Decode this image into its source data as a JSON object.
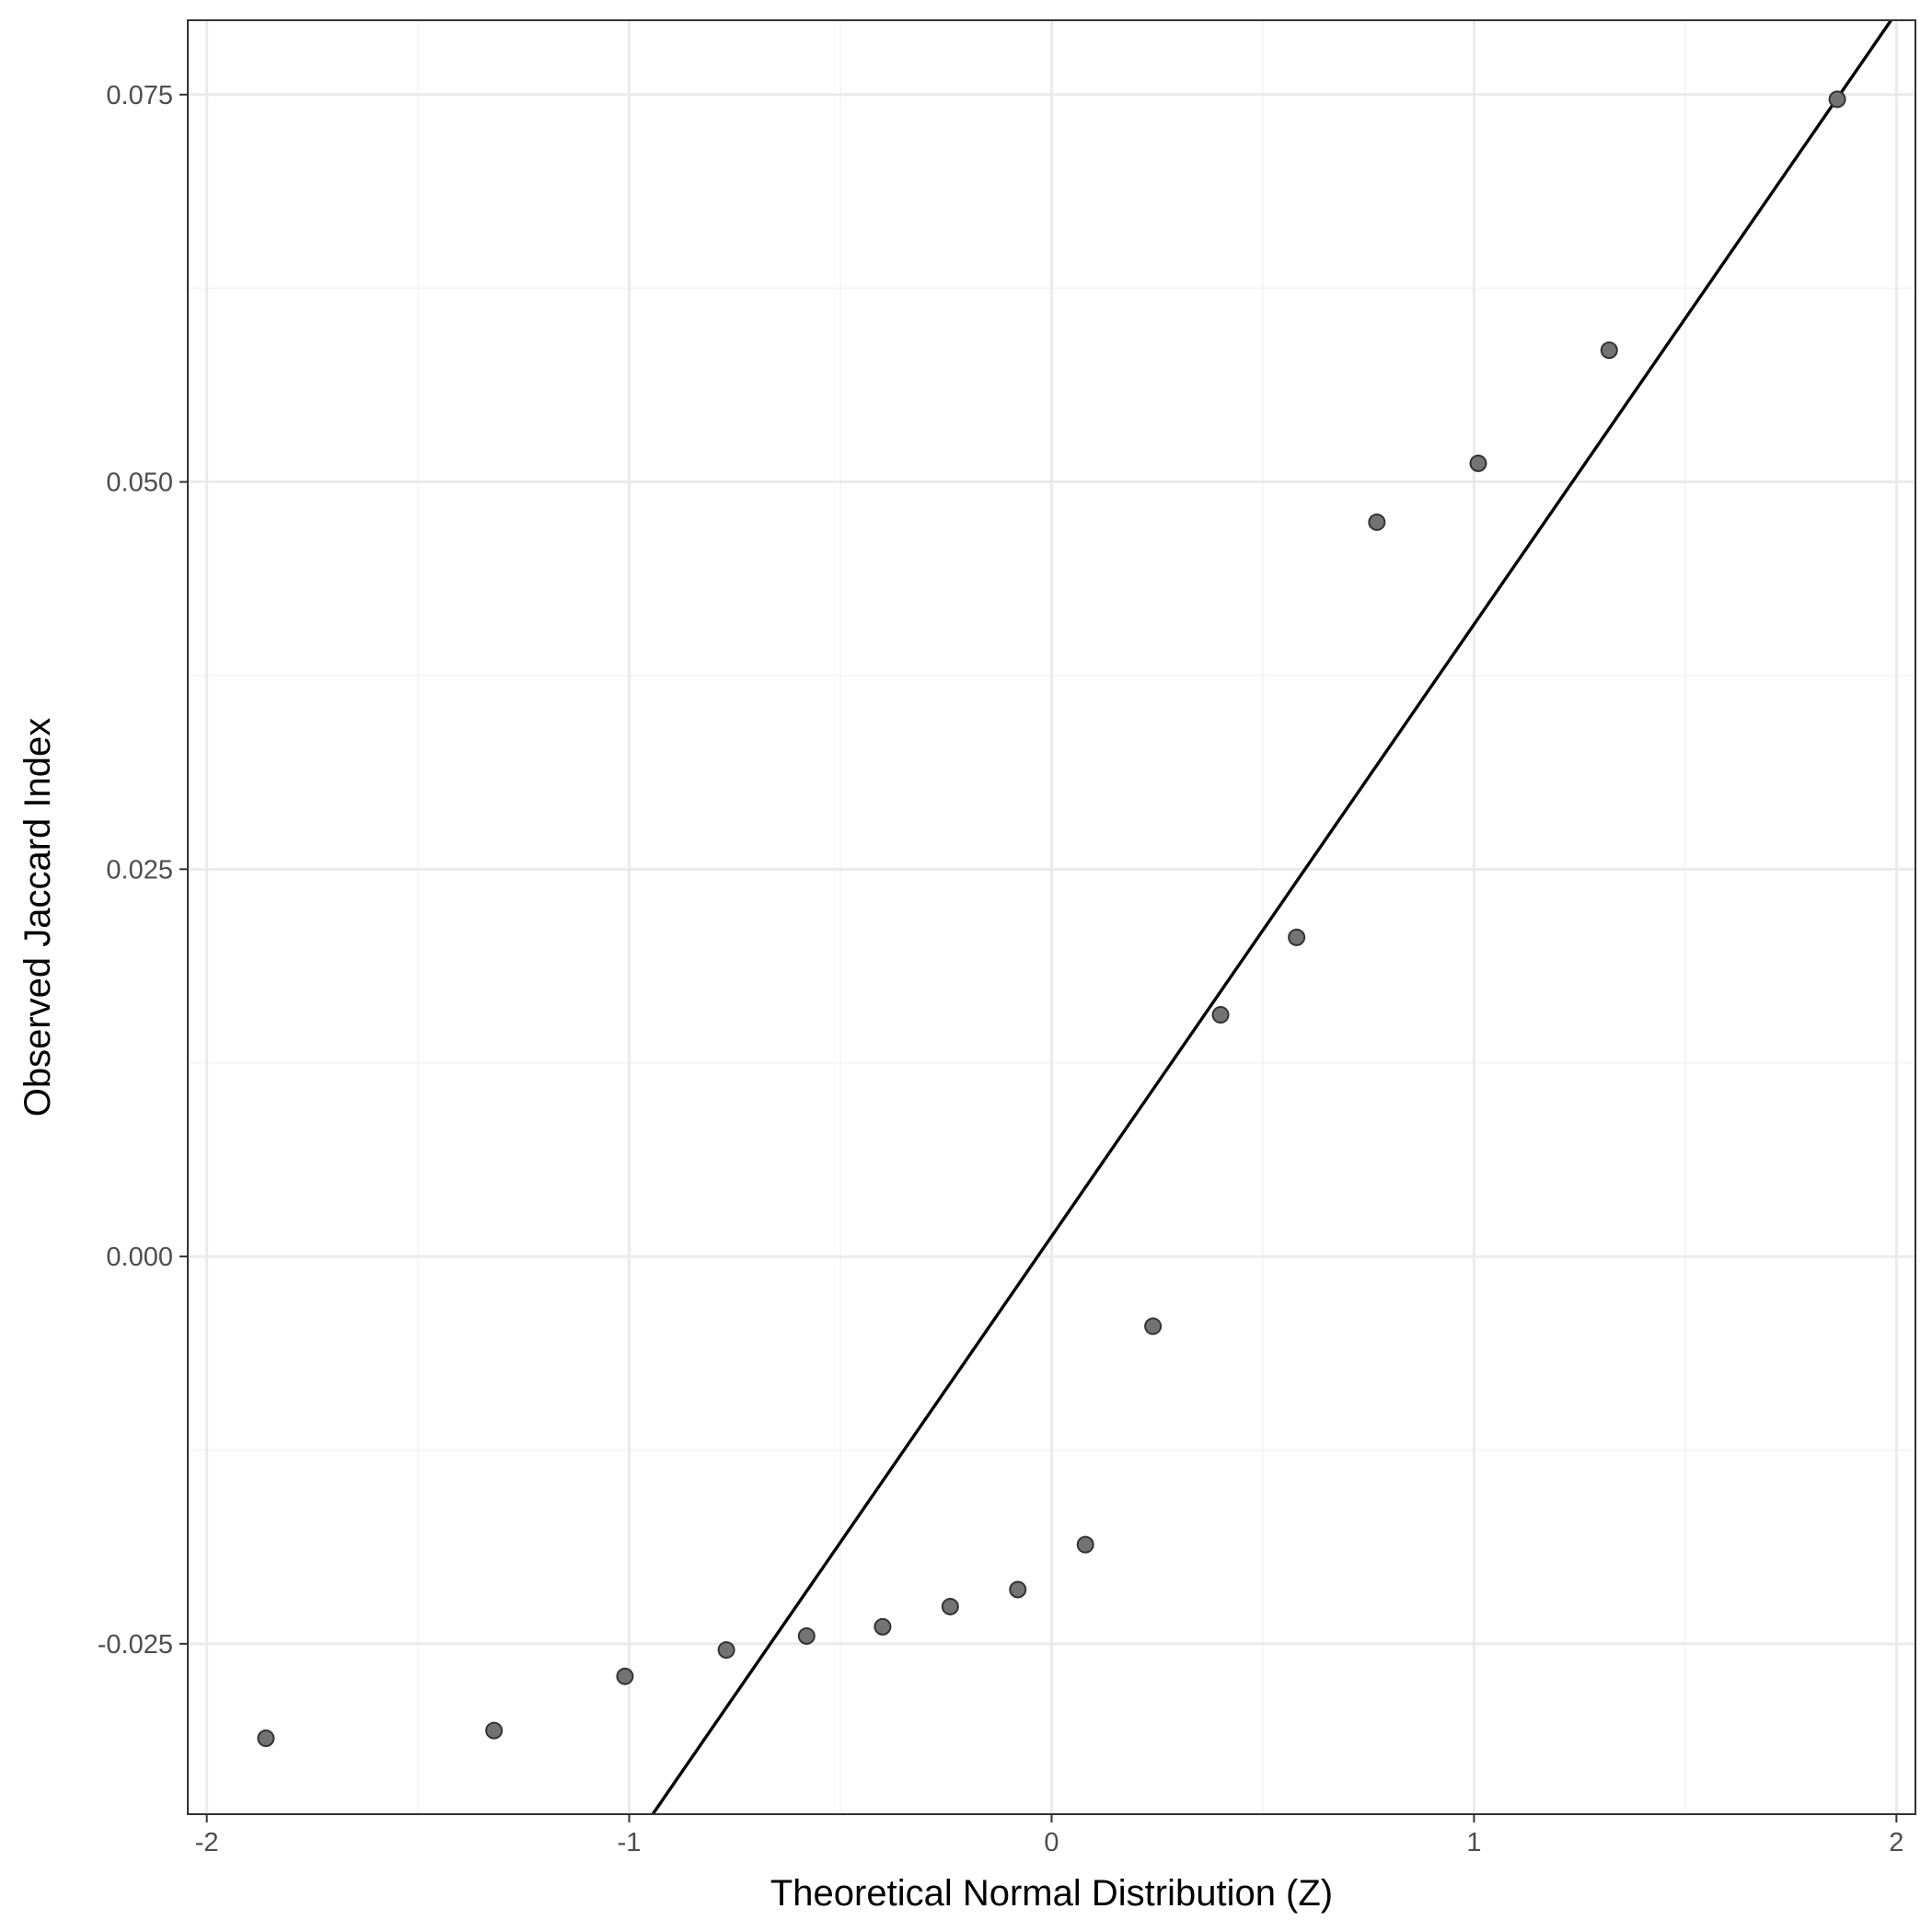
{
  "chart_data": {
    "type": "scatter",
    "title": "",
    "xlabel": "Theoretical Normal Distribution (Z)",
    "ylabel": "Observed Jaccard Index",
    "xlim": [
      -2.045,
      2.045
    ],
    "ylim": [
      -0.036,
      0.0798
    ],
    "x_ticks": [
      -2,
      -1,
      0,
      1,
      2
    ],
    "x_tick_labels": [
      "-2",
      "-1",
      "0",
      "1",
      "2"
    ],
    "y_ticks": [
      -0.025,
      0.0,
      0.025,
      0.05,
      0.075
    ],
    "y_tick_labels": [
      "-0.025",
      "0.000",
      "0.025",
      "0.050",
      "0.075"
    ],
    "grid": true,
    "legend": "none",
    "points": [
      {
        "x": -1.86,
        "y": -0.0311
      },
      {
        "x": -1.32,
        "y": -0.0306
      },
      {
        "x": -1.01,
        "y": -0.0271
      },
      {
        "x": -0.77,
        "y": -0.0254
      },
      {
        "x": -0.58,
        "y": -0.0245
      },
      {
        "x": -0.4,
        "y": -0.0239
      },
      {
        "x": -0.24,
        "y": -0.0226
      },
      {
        "x": -0.08,
        "y": -0.0215
      },
      {
        "x": 0.08,
        "y": -0.0186
      },
      {
        "x": 0.24,
        "y": -0.0045
      },
      {
        "x": 0.4,
        "y": 0.0156
      },
      {
        "x": 0.58,
        "y": 0.0206
      },
      {
        "x": 0.77,
        "y": 0.0474
      },
      {
        "x": 1.01,
        "y": 0.0512
      },
      {
        "x": 1.32,
        "y": 0.0585
      },
      {
        "x": 1.86,
        "y": 0.0747
      }
    ],
    "reference_line": {
      "intercept": 0.0013,
      "slope": 0.0395
    },
    "colors": {
      "point_fill": "#737373",
      "point_stroke": "#333333",
      "line": "#000000",
      "grid_major": "#ebebeb",
      "grid_minor": "#f4f4f4",
      "panel_border": "#333333"
    }
  }
}
